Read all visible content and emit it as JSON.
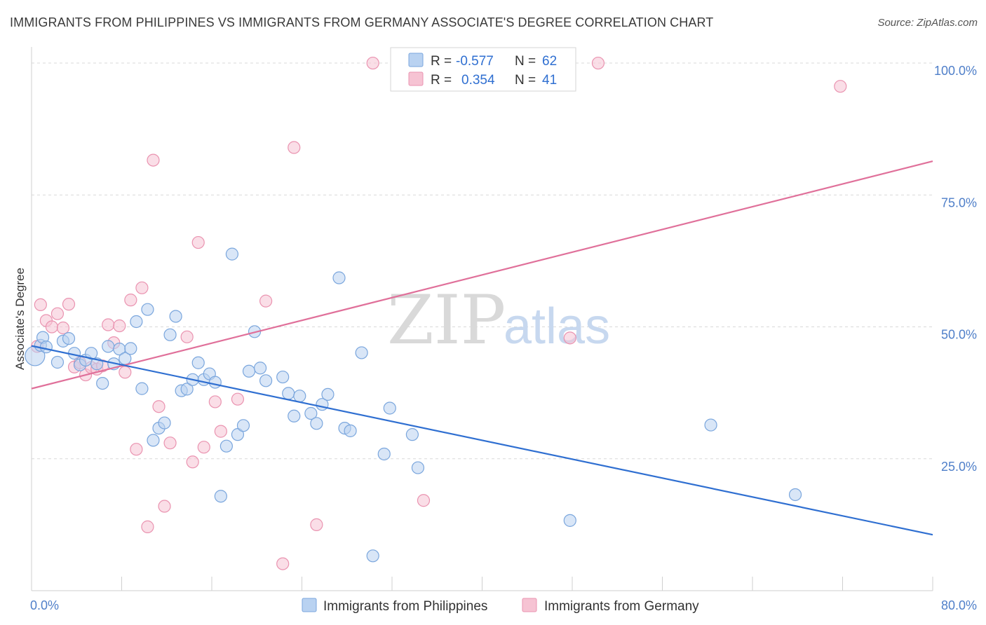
{
  "title": "IMMIGRANTS FROM PHILIPPINES VS IMMIGRANTS FROM GERMANY ASSOCIATE'S DEGREE CORRELATION CHART",
  "source": "Source: ZipAtlas.com",
  "watermark": {
    "zip": "ZIP",
    "atlas": "atlas"
  },
  "colors": {
    "philippines_fill": "#b9d2f1",
    "philippines_stroke": "#7aa6dd",
    "philippines_line": "#2f6fd1",
    "germany_fill": "#f6c3d3",
    "germany_stroke": "#ea93b0",
    "germany_line": "#e0709a",
    "tick_label": "#4f7fc9",
    "grid": "#d9d9d9"
  },
  "legend": {
    "r_label": "R =",
    "n_label": "N =",
    "philippines": {
      "r": "-0.577",
      "n": "62"
    },
    "germany": {
      "r": "0.354",
      "n": "41"
    }
  },
  "chart_data": {
    "type": "scatter",
    "title": "IMMIGRANTS FROM PHILIPPINES VS IMMIGRANTS FROM GERMANY ASSOCIATE'S DEGREE CORRELATION CHART",
    "xlabel": "",
    "ylabel": "Associate's Degree",
    "xlim": [
      0,
      80
    ],
    "ylim": [
      0,
      102
    ],
    "x_tick_labels": [
      "0.0%",
      "80.0%"
    ],
    "y_ticks": [
      25,
      50,
      75,
      100
    ],
    "y_tick_labels": [
      "25.0%",
      "50.0%",
      "75.0%",
      "100.0%"
    ],
    "grid": true,
    "legend_position": "top-center",
    "series": [
      {
        "name": "Immigrants from Philippines",
        "trend": {
          "x": [
            0,
            80
          ],
          "y": [
            46.4,
            10.6
          ]
        },
        "points": [
          [
            0.3,
            44.5
          ],
          [
            0.8,
            46.5
          ],
          [
            1.0,
            48.0
          ],
          [
            1.3,
            46.2
          ],
          [
            2.3,
            43.3
          ],
          [
            2.8,
            47.3
          ],
          [
            3.3,
            47.8
          ],
          [
            3.8,
            45.0
          ],
          [
            4.3,
            42.8
          ],
          [
            4.8,
            43.7
          ],
          [
            5.3,
            45.0
          ],
          [
            5.8,
            43.0
          ],
          [
            6.3,
            39.3
          ],
          [
            6.8,
            46.3
          ],
          [
            7.3,
            43.0
          ],
          [
            7.8,
            45.8
          ],
          [
            8.3,
            44.0
          ],
          [
            8.8,
            45.9
          ],
          [
            9.3,
            51.0
          ],
          [
            9.8,
            38.3
          ],
          [
            10.3,
            53.3
          ],
          [
            10.8,
            28.5
          ],
          [
            11.3,
            30.8
          ],
          [
            11.8,
            31.8
          ],
          [
            12.3,
            48.5
          ],
          [
            12.8,
            52.0
          ],
          [
            13.3,
            37.9
          ],
          [
            13.8,
            38.2
          ],
          [
            14.3,
            40.0
          ],
          [
            14.8,
            43.2
          ],
          [
            15.3,
            40.0
          ],
          [
            15.8,
            41.1
          ],
          [
            16.3,
            39.5
          ],
          [
            16.8,
            17.9
          ],
          [
            17.3,
            27.4
          ],
          [
            17.8,
            63.8
          ],
          [
            18.3,
            29.6
          ],
          [
            18.8,
            31.3
          ],
          [
            19.3,
            41.6
          ],
          [
            19.8,
            49.1
          ],
          [
            20.3,
            42.2
          ],
          [
            20.8,
            39.8
          ],
          [
            22.3,
            40.5
          ],
          [
            22.8,
            37.4
          ],
          [
            23.3,
            33.1
          ],
          [
            23.8,
            36.9
          ],
          [
            24.8,
            33.6
          ],
          [
            25.3,
            31.7
          ],
          [
            25.8,
            35.3
          ],
          [
            26.3,
            37.2
          ],
          [
            27.3,
            59.3
          ],
          [
            27.8,
            30.8
          ],
          [
            28.3,
            30.3
          ],
          [
            29.3,
            45.1
          ],
          [
            30.3,
            6.6
          ],
          [
            31.3,
            25.9
          ],
          [
            31.8,
            34.6
          ],
          [
            33.8,
            29.6
          ],
          [
            34.3,
            23.3
          ],
          [
            47.8,
            13.3
          ],
          [
            60.3,
            31.4
          ],
          [
            67.8,
            18.2
          ]
        ]
      },
      {
        "name": "Immigrants from Germany",
        "trend": {
          "x": [
            0,
            80
          ],
          "y": [
            38.3,
            81.4
          ]
        },
        "points": [
          [
            0.5,
            46.3
          ],
          [
            0.8,
            54.2
          ],
          [
            1.3,
            51.2
          ],
          [
            1.8,
            50.0
          ],
          [
            2.3,
            52.5
          ],
          [
            2.8,
            49.8
          ],
          [
            3.3,
            54.3
          ],
          [
            3.8,
            42.4
          ],
          [
            4.3,
            43.2
          ],
          [
            4.8,
            40.9
          ],
          [
            5.3,
            42.3
          ],
          [
            5.8,
            42.0
          ],
          [
            6.3,
            42.6
          ],
          [
            6.8,
            50.4
          ],
          [
            7.3,
            47.0
          ],
          [
            7.8,
            50.2
          ],
          [
            8.3,
            41.4
          ],
          [
            8.8,
            55.1
          ],
          [
            9.3,
            26.8
          ],
          [
            9.8,
            57.4
          ],
          [
            10.3,
            12.1
          ],
          [
            10.8,
            81.6
          ],
          [
            11.3,
            34.9
          ],
          [
            11.8,
            16.0
          ],
          [
            12.3,
            28.0
          ],
          [
            13.8,
            48.1
          ],
          [
            14.3,
            24.4
          ],
          [
            14.8,
            66.0
          ],
          [
            15.3,
            27.2
          ],
          [
            16.3,
            35.8
          ],
          [
            16.8,
            30.2
          ],
          [
            18.3,
            36.3
          ],
          [
            20.8,
            54.9
          ],
          [
            22.3,
            5.1
          ],
          [
            23.3,
            84.0
          ],
          [
            25.3,
            12.5
          ],
          [
            30.3,
            100.0
          ],
          [
            34.8,
            17.1
          ],
          [
            47.8,
            47.9
          ],
          [
            50.3,
            100.0
          ],
          [
            71.8,
            95.6
          ]
        ]
      }
    ]
  },
  "bottom_legend": {
    "philippines": "Immigrants from Philippines",
    "germany": "Immigrants from Germany"
  }
}
